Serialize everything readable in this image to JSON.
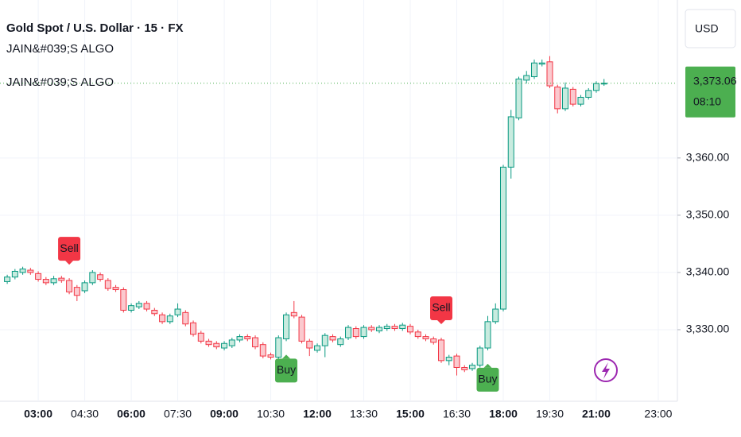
{
  "header": {
    "title": "Gold Spot / U.S. Dollar · 15 · FX",
    "indicators": [
      "JAIN&#039;S ALGO",
      "JAIN&#039;S ALGO"
    ],
    "currency": "USD"
  },
  "chart_data": {
    "type": "candlestick",
    "up_color": "#089981",
    "down_color": "#f23645",
    "x": [
      "02:00",
      "02:15",
      "02:30",
      "02:45",
      "03:00",
      "03:15",
      "03:30",
      "03:45",
      "04:00",
      "04:15",
      "04:30",
      "04:45",
      "05:00",
      "05:15",
      "05:30",
      "05:45",
      "06:00",
      "06:15",
      "06:30",
      "06:45",
      "07:00",
      "07:15",
      "07:30",
      "07:45",
      "08:00",
      "08:15",
      "08:30",
      "08:45",
      "09:00",
      "09:15",
      "09:30",
      "09:45",
      "10:00",
      "10:15",
      "10:30",
      "10:45",
      "11:00",
      "11:15",
      "11:30",
      "11:45",
      "12:00",
      "12:15",
      "12:30",
      "12:45",
      "13:00",
      "13:15",
      "13:30",
      "13:45",
      "14:00",
      "14:15",
      "14:30",
      "14:45",
      "15:00",
      "15:15",
      "15:30",
      "15:45",
      "16:00",
      "16:15",
      "16:30",
      "16:45",
      "17:00",
      "17:15",
      "17:30",
      "17:45",
      "18:00",
      "18:15",
      "18:30",
      "18:45",
      "19:00",
      "19:15",
      "19:30",
      "19:45",
      "20:00",
      "20:15",
      "20:30",
      "20:45",
      "21:00",
      "21:15"
    ],
    "open": [
      3338.4,
      3339.2,
      3340.0,
      3340.4,
      3339.8,
      3338.8,
      3338.2,
      3339.0,
      3338.6,
      3337.4,
      3336.8,
      3338.2,
      3339.6,
      3338.6,
      3337.4,
      3337.0,
      3333.4,
      3334.0,
      3334.6,
      3333.4,
      3332.6,
      3331.4,
      3332.6,
      3333.0,
      3331.2,
      3329.4,
      3328.0,
      3327.6,
      3326.8,
      3327.2,
      3328.2,
      3328.8,
      3328.6,
      3327.4,
      3325.6,
      3325.2,
      3328.4,
      3333.0,
      3332.2,
      3328.0,
      3326.4,
      3327.2,
      3328.8,
      3327.4,
      3328.6,
      3330.2,
      3328.8,
      3330.4,
      3329.8,
      3330.2,
      3330.6,
      3330.2,
      3330.6,
      3329.6,
      3328.8,
      3328.4,
      3328.2,
      3324.6,
      3325.4,
      3323.4,
      3323.2,
      3323.8,
      3326.8,
      3331.4,
      3333.6,
      3358.4,
      3367.0,
      3373.6,
      3374.2,
      3376.4,
      3376.8,
      3372.4,
      3368.6,
      3372.0,
      3369.4,
      3370.6,
      3371.8,
      3373.0
    ],
    "high": [
      3339.6,
      3340.6,
      3341.0,
      3340.8,
      3340.2,
      3339.2,
      3339.4,
      3339.4,
      3339.0,
      3337.8,
      3338.6,
      3340.4,
      3340.0,
      3339.0,
      3337.8,
      3337.4,
      3334.6,
      3335.0,
      3335.0,
      3333.8,
      3333.0,
      3332.8,
      3334.6,
      3333.4,
      3331.6,
      3329.8,
      3328.4,
      3328.0,
      3328.0,
      3328.6,
      3329.2,
      3329.2,
      3329.0,
      3327.8,
      3326.0,
      3329.0,
      3333.0,
      3335.0,
      3332.6,
      3328.4,
      3327.6,
      3329.4,
      3329.2,
      3328.8,
      3330.8,
      3330.6,
      3330.8,
      3330.8,
      3330.8,
      3331.0,
      3331.0,
      3331.2,
      3331.0,
      3330.0,
      3329.2,
      3328.8,
      3328.6,
      3325.6,
      3325.8,
      3323.8,
      3324.2,
      3327.2,
      3332.4,
      3334.6,
      3358.8,
      3368.4,
      3374.2,
      3375.2,
      3377.2,
      3377.2,
      3377.8,
      3372.8,
      3373.2,
      3372.4,
      3371.0,
      3372.2,
      3373.4,
      3373.8
    ],
    "low": [
      3338.0,
      3338.8,
      3339.6,
      3339.6,
      3338.4,
      3337.8,
      3337.8,
      3338.2,
      3336.2,
      3335.0,
      3336.4,
      3337.8,
      3338.4,
      3336.8,
      3336.6,
      3333.0,
      3333.0,
      3333.6,
      3333.2,
      3332.4,
      3331.0,
      3331.0,
      3332.2,
      3330.6,
      3328.8,
      3327.6,
      3327.0,
      3326.6,
      3326.4,
      3326.8,
      3327.8,
      3328.0,
      3326.6,
      3325.0,
      3324.8,
      3324.8,
      3328.0,
      3332.0,
      3327.6,
      3325.4,
      3326.0,
      3325.2,
      3327.8,
      3327.0,
      3328.2,
      3328.4,
      3328.4,
      3329.6,
      3329.4,
      3329.8,
      3329.8,
      3329.8,
      3329.2,
      3328.4,
      3328.0,
      3327.4,
      3324.2,
      3323.8,
      3322.0,
      3322.6,
      3322.8,
      3323.4,
      3326.4,
      3331.0,
      3333.2,
      3356.4,
      3366.6,
      3373.0,
      3373.8,
      3376.0,
      3372.2,
      3367.8,
      3368.2,
      3369.0,
      3369.0,
      3370.2,
      3371.4,
      3372.6
    ],
    "close": [
      3339.2,
      3340.2,
      3340.6,
      3340.0,
      3338.8,
      3338.2,
      3338.9,
      3338.6,
      3336.6,
      3336.0,
      3338.2,
      3340.0,
      3338.8,
      3337.2,
      3337.0,
      3333.4,
      3334.2,
      3334.6,
      3333.6,
      3332.8,
      3331.4,
      3332.4,
      3333.6,
      3331.0,
      3329.2,
      3328.0,
      3327.4,
      3327.0,
      3327.6,
      3328.2,
      3328.8,
      3328.4,
      3327.0,
      3325.4,
      3325.2,
      3328.6,
      3332.6,
      3332.4,
      3328.0,
      3326.8,
      3327.2,
      3329.0,
      3328.2,
      3328.4,
      3330.4,
      3328.8,
      3330.4,
      3330.0,
      3330.4,
      3330.6,
      3330.2,
      3330.8,
      3329.6,
      3328.8,
      3328.4,
      3327.8,
      3324.6,
      3325.2,
      3323.4,
      3323.0,
      3323.8,
      3326.8,
      3331.4,
      3333.6,
      3358.4,
      3367.2,
      3373.8,
      3374.4,
      3376.6,
      3376.6,
      3372.6,
      3368.6,
      3372.2,
      3369.4,
      3370.6,
      3371.8,
      3373.0,
      3373.06
    ],
    "xlim": [
      "01:46",
      "23:37"
    ],
    "xticks": [
      "03:00",
      "04:30",
      "06:00",
      "07:30",
      "09:00",
      "10:30",
      "12:00",
      "13:30",
      "15:00",
      "16:30",
      "18:00",
      "19:30",
      "21:00",
      "23:00"
    ],
    "ylim": [
      3317.5,
      3387.6
    ],
    "yticks": [
      {
        "value": 3330,
        "label": "3,330.00"
      },
      {
        "value": 3340,
        "label": "3,340.00"
      },
      {
        "value": 3350,
        "label": "3,350.00"
      },
      {
        "value": 3360,
        "label": "3,360.00"
      }
    ],
    "grid": true,
    "last_price": {
      "value": 3373.06,
      "label": "3,373.06",
      "countdown": "08:10",
      "color": "#4caf50"
    },
    "signals": [
      {
        "label": "Sell",
        "at": "04:00",
        "color": "#f23645"
      },
      {
        "label": "Buy",
        "at": "11:00",
        "color": "#4caf50"
      },
      {
        "label": "Sell",
        "at": "16:00",
        "color": "#f23645"
      },
      {
        "label": "Buy",
        "at": "17:30",
        "color": "#4caf50"
      }
    ]
  }
}
